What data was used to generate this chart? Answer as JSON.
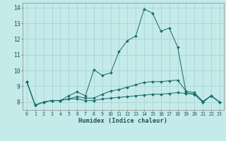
{
  "background_color": "#c5eaea",
  "grid_color": "#aad4d4",
  "line_color": "#1a7068",
  "xlim": [
    -0.5,
    23.5
  ],
  "ylim": [
    7.5,
    14.3
  ],
  "xticks": [
    0,
    1,
    2,
    3,
    4,
    5,
    6,
    7,
    8,
    9,
    10,
    11,
    12,
    13,
    14,
    15,
    16,
    17,
    18,
    19,
    20,
    21,
    22,
    23
  ],
  "yticks": [
    8,
    9,
    10,
    11,
    12,
    13,
    14
  ],
  "xlabel": "Humidex (Indice chaleur)",
  "series": [
    [
      9.3,
      7.8,
      8.0,
      8.1,
      8.1,
      8.4,
      8.65,
      8.4,
      10.05,
      9.7,
      9.85,
      11.2,
      11.9,
      12.2,
      13.9,
      13.65,
      12.5,
      12.7,
      11.5,
      8.6,
      8.5,
      8.0,
      8.4,
      8.0
    ],
    [
      9.3,
      7.8,
      8.0,
      8.1,
      8.1,
      8.2,
      8.35,
      8.25,
      8.25,
      8.5,
      8.7,
      8.8,
      8.95,
      9.1,
      9.25,
      9.3,
      9.3,
      9.35,
      9.4,
      8.7,
      8.6,
      8.05,
      8.4,
      8.0
    ],
    [
      9.3,
      7.8,
      8.0,
      8.1,
      8.1,
      8.2,
      8.2,
      8.1,
      8.1,
      8.2,
      8.25,
      8.3,
      8.35,
      8.4,
      8.45,
      8.5,
      8.5,
      8.55,
      8.6,
      8.55,
      8.5,
      8.0,
      8.4,
      8.0
    ]
  ]
}
